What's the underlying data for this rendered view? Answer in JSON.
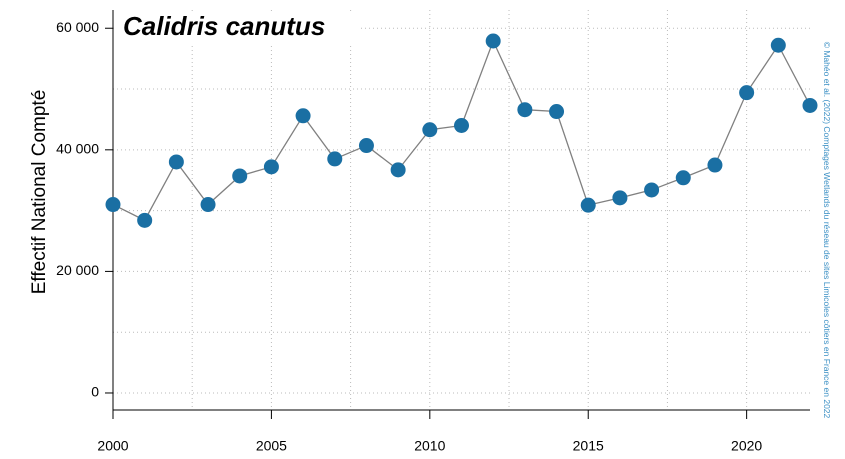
{
  "chart_data": {
    "type": "line",
    "title": "Calidris canutus",
    "y_label": "Effectif National Compté",
    "credit": "© Mahéo et al. (2022) Comptages Wetlands du réseau de sites Limicoles côtiers en France en 2022",
    "x": [
      2000,
      2001,
      2002,
      2003,
      2004,
      2005,
      2006,
      2007,
      2008,
      2009,
      2010,
      2011,
      2012,
      2013,
      2014,
      2015,
      2016,
      2017,
      2018,
      2019,
      2020,
      2021,
      2022
    ],
    "series": [
      {
        "name": "Calidris canutus",
        "color": "#1a6fa3",
        "line_color": "#808080",
        "values": [
          31000,
          28400,
          38000,
          31000,
          35700,
          37200,
          45600,
          38500,
          40700,
          36700,
          43300,
          44000,
          57900,
          46600,
          46300,
          30900,
          32100,
          33400,
          35400,
          37500,
          49400,
          57200,
          47300
        ]
      }
    ],
    "xlim": [
      2000,
      2022
    ],
    "xticks": [
      2000,
      2005,
      2010,
      2015,
      2020
    ],
    "ylim": [
      -2800,
      63000
    ],
    "yticks": [
      0,
      {
        "value": 20000,
        "label": "20 000"
      },
      {
        "value": 40000,
        "label": "40 000"
      },
      {
        "value": 60000,
        "label": "60 000"
      }
    ],
    "xminor": [
      2002.5,
      2007.5,
      2012.5,
      2017.5
    ],
    "yminor": [
      10000,
      30000,
      50000
    ],
    "grid": true
  }
}
